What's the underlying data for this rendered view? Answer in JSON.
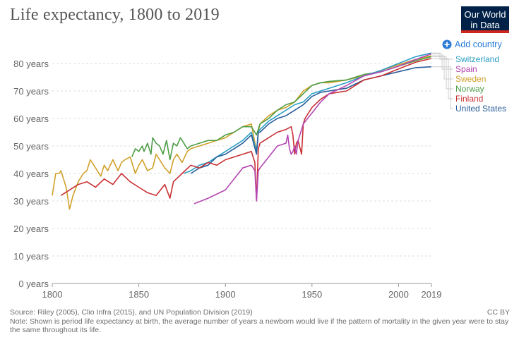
{
  "title": "Life expectancy, 1800 to 2019",
  "logo": {
    "line1": "Our World",
    "line2": "in Data"
  },
  "add_country_label": "Add country",
  "source": "Source: Riley (2005), Clio Infra (2015), and UN Population Division (2019)",
  "note": "Note: Shown is period life expectancy at birth, the average number of years a newborn would live if the pattern of mortality in the given year were to stay the same throughout its life.",
  "license": "CC BY",
  "colors": {
    "Switzerland": "#2a9fc4",
    "Spain": "#b447b2",
    "Sweden": "#d0a12a",
    "Norway": "#4e9e46",
    "Finland": "#c93033",
    "United States": "#2a5d9a",
    "add_country": "#2a7bd6"
  },
  "chart_data": {
    "type": "line",
    "title": "Life expectancy, 1800 to 2019",
    "xlim": [
      1800,
      2019
    ],
    "ylim": [
      0,
      85
    ],
    "x_ticks": [
      1800,
      1850,
      1900,
      1950,
      2000,
      2019
    ],
    "y_ticks": [
      0,
      10,
      20,
      30,
      40,
      50,
      60,
      70,
      80
    ],
    "y_tick_labels": [
      "0 years",
      "10 years",
      "20 years",
      "30 years",
      "40 years",
      "50 years",
      "60 years",
      "70 years",
      "80 years"
    ],
    "grid": "horizontal dashed",
    "legend": "right, in order: Switzerland, Spain, Sweden, Norway, Finland, United States",
    "series": [
      {
        "name": "Sweden",
        "x": [
          1800,
          1802,
          1804,
          1805,
          1807,
          1808,
          1809,
          1810,
          1812,
          1815,
          1818,
          1820,
          1822,
          1825,
          1828,
          1830,
          1832,
          1835,
          1838,
          1840,
          1842,
          1845,
          1848,
          1850,
          1852,
          1855,
          1858,
          1860,
          1862,
          1865,
          1868,
          1870,
          1872,
          1875,
          1878,
          1880,
          1885,
          1890,
          1895,
          1900,
          1905,
          1910,
          1915,
          1918,
          1919,
          1920,
          1925,
          1930,
          1935,
          1940,
          1945,
          1950,
          1955,
          1960,
          1970,
          1980,
          1990,
          2000,
          2010,
          2019
        ],
        "y": [
          32,
          40,
          40,
          41,
          37,
          35,
          31,
          27,
          32,
          37,
          40,
          41,
          45,
          42,
          39,
          43,
          41,
          45,
          41,
          44,
          45,
          46,
          40,
          43,
          45,
          41,
          42,
          47,
          45,
          42,
          40,
          45,
          47,
          44,
          48,
          49,
          50,
          51,
          52,
          53,
          55,
          57,
          58,
          48,
          55,
          58,
          61,
          63,
          64,
          66,
          70,
          72,
          73,
          73,
          74,
          75.5,
          77.5,
          79.5,
          81.5,
          82.8
        ]
      },
      {
        "name": "Norway",
        "x": [
          1846,
          1848,
          1850,
          1852,
          1853,
          1855,
          1857,
          1858,
          1860,
          1862,
          1864,
          1866,
          1868,
          1870,
          1872,
          1874,
          1876,
          1878,
          1880,
          1885,
          1890,
          1895,
          1900,
          1905,
          1910,
          1915,
          1918,
          1920,
          1925,
          1930,
          1935,
          1940,
          1945,
          1950,
          1955,
          1960,
          1970,
          1980,
          1990,
          2000,
          2010,
          2019
        ],
        "y": [
          46,
          49,
          48,
          50,
          48,
          51,
          47,
          53,
          51,
          50,
          47,
          52,
          45,
          51,
          50,
          53,
          51,
          49,
          50,
          51,
          52,
          52,
          54,
          55,
          57,
          57,
          54,
          58,
          60,
          63,
          65,
          66,
          69,
          72,
          73,
          73.5,
          74,
          76,
          77,
          79,
          81,
          82.5
        ]
      },
      {
        "name": "Switzerland",
        "x": [
          1876,
          1880,
          1885,
          1890,
          1895,
          1900,
          1905,
          1910,
          1915,
          1918,
          1919,
          1920,
          1925,
          1930,
          1935,
          1940,
          1945,
          1950,
          1955,
          1960,
          1970,
          1980,
          1990,
          2000,
          2010,
          2019
        ],
        "y": [
          40,
          41,
          43,
          44,
          46,
          48,
          50,
          52,
          55,
          48,
          55,
          56,
          59,
          61,
          63,
          65,
          66,
          69,
          70,
          71,
          73,
          75.5,
          77.5,
          80,
          82.5,
          83.8
        ]
      },
      {
        "name": "United States",
        "x": [
          1880,
          1885,
          1890,
          1895,
          1900,
          1905,
          1910,
          1915,
          1918,
          1919,
          1920,
          1925,
          1930,
          1935,
          1940,
          1945,
          1950,
          1955,
          1960,
          1970,
          1980,
          1990,
          2000,
          2010,
          2019
        ],
        "y": [
          40,
          42,
          43,
          46,
          47,
          49,
          51,
          54,
          47,
          55,
          55,
          58,
          60,
          61,
          63,
          65,
          68,
          69.5,
          70,
          71,
          74,
          75.5,
          77,
          78.5,
          78.8
        ]
      },
      {
        "name": "Finland",
        "x": [
          1805,
          1810,
          1815,
          1820,
          1825,
          1830,
          1835,
          1840,
          1845,
          1850,
          1855,
          1860,
          1865,
          1868,
          1870,
          1875,
          1880,
          1885,
          1890,
          1895,
          1900,
          1905,
          1910,
          1915,
          1917,
          1918,
          1919,
          1920,
          1925,
          1930,
          1935,
          1938,
          1939,
          1940,
          1941,
          1942,
          1944,
          1945,
          1946,
          1950,
          1955,
          1960,
          1970,
          1980,
          1990,
          2000,
          2010,
          2019
        ],
        "y": [
          32,
          34,
          36,
          37,
          35,
          38,
          36,
          40,
          37,
          35,
          33,
          32,
          36,
          31,
          37,
          40,
          43,
          42,
          44,
          43,
          45,
          46,
          47,
          48,
          44,
          30,
          49,
          51,
          53,
          55,
          56,
          57,
          54,
          47,
          51,
          52,
          47,
          58,
          60,
          64,
          67,
          69,
          70,
          74,
          75.5,
          78,
          80.5,
          81.8
        ]
      },
      {
        "name": "Spain",
        "x": [
          1882,
          1890,
          1900,
          1905,
          1910,
          1915,
          1917,
          1918,
          1919,
          1920,
          1925,
          1930,
          1935,
          1936,
          1937,
          1938,
          1939,
          1940,
          1941,
          1942,
          1945,
          1950,
          1955,
          1960,
          1970,
          1980,
          1990,
          2000,
          2010,
          2019
        ],
        "y": [
          29,
          31,
          34,
          38,
          42,
          43,
          41,
          30,
          41,
          42,
          46,
          50,
          51,
          54,
          49,
          47,
          48,
          50,
          47,
          52,
          58,
          62,
          66,
          69,
          72,
          75.5,
          77,
          79,
          81.5,
          83.5
        ]
      }
    ]
  }
}
